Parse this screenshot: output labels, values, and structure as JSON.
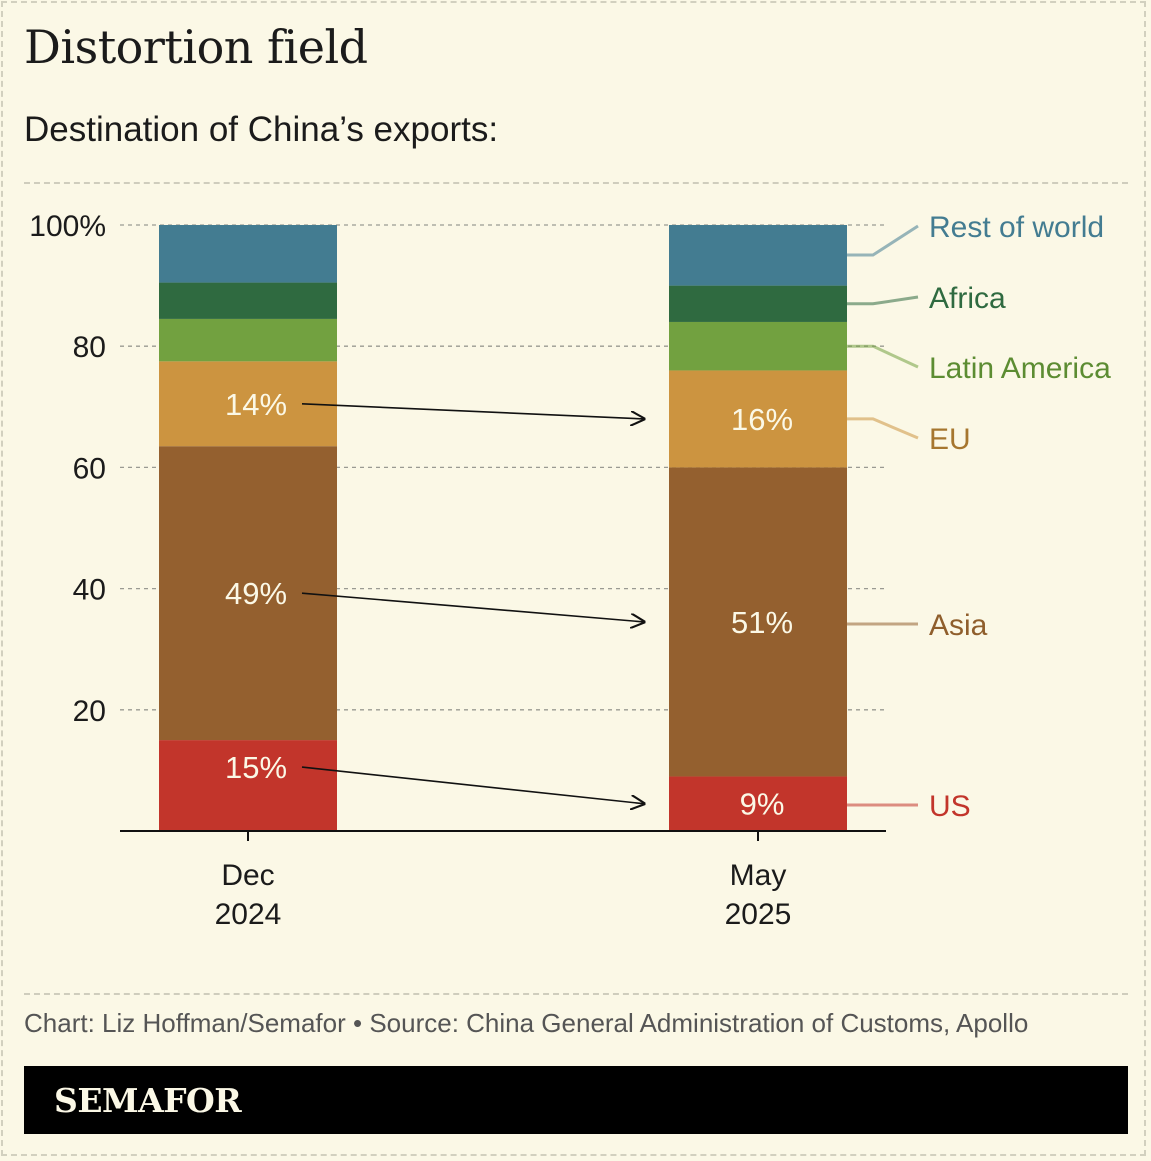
{
  "header": {
    "title": "Distortion field",
    "subtitle": "Destination of China’s exports:"
  },
  "footer": {
    "source": "Chart: Liz Hoffman/Semafor • Source: China General Administration of Customs, Apollo",
    "brand": "SEMAFOR"
  },
  "colors": {
    "background": "#fbf8e6",
    "US": "#c2352b",
    "Asia": "#94602f",
    "EU": "#cc9440",
    "Latin America": "#72a140",
    "Africa": "#2f6a40",
    "Rest of world": "#437c91"
  },
  "chart_data": {
    "type": "bar",
    "stacked": true,
    "title": "Destination of China’s exports:",
    "categories": [
      [
        "Dec",
        "2024"
      ],
      [
        "May",
        "2025"
      ]
    ],
    "ylim": [
      0,
      100
    ],
    "yticks": [
      20,
      40,
      60,
      80,
      100
    ],
    "ytick_labels": [
      "20",
      "40",
      "60",
      "80",
      "100%"
    ],
    "grid": true,
    "series": [
      {
        "name": "US",
        "values": [
          15,
          9
        ],
        "labels": [
          "15%",
          "9%"
        ]
      },
      {
        "name": "Asia",
        "values": [
          48.5,
          51
        ],
        "labels": [
          "49%",
          "51%"
        ]
      },
      {
        "name": "EU",
        "values": [
          14,
          16
        ],
        "labels": [
          "14%",
          "16%"
        ]
      },
      {
        "name": "Latin America",
        "values": [
          7,
          8
        ],
        "labels": [
          "",
          ""
        ]
      },
      {
        "name": "Africa",
        "values": [
          6,
          6
        ],
        "labels": [
          "",
          ""
        ]
      },
      {
        "name": "Rest of world",
        "values": [
          9.5,
          10
        ],
        "labels": [
          "",
          ""
        ]
      }
    ],
    "annotations": [
      {
        "type": "arrow",
        "series": "US",
        "from": "Dec 2024",
        "to": "May 2025"
      },
      {
        "type": "arrow",
        "series": "Asia",
        "from": "Dec 2024",
        "to": "May 2025"
      },
      {
        "type": "arrow",
        "series": "EU",
        "from": "Dec 2024",
        "to": "May 2025"
      }
    ],
    "legend": "right, direct labels"
  }
}
